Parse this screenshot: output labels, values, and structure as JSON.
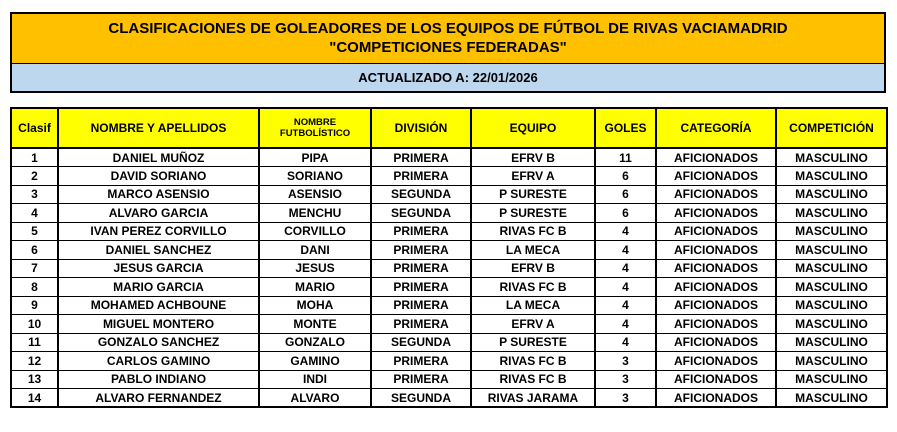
{
  "header": {
    "title_line1": "CLASIFICACIONES DE GOLEADORES DE LOS EQUIPOS DE FÚTBOL DE RIVAS VACIAMADRID",
    "title_line2": "\"COMPETICIONES FEDERADAS\"",
    "updated": "ACTUALIZADO A: 22/01/2026"
  },
  "colors": {
    "title_bg": "#FFC000",
    "updated_bg": "#BDD7EE",
    "table_header_bg": "#FFFF00",
    "border": "#000000",
    "text": "#000000"
  },
  "table": {
    "columns": [
      "Clasif",
      "NOMBRE Y APELLIDOS",
      "NOMBRE FUTBOLÍSTICO",
      "DIVISIÓN",
      "EQUIPO",
      "GOLES",
      "CATEGORÍA",
      "COMPETICIÓN"
    ],
    "column_keys": [
      "clasif",
      "nombre-apellidos",
      "nombre-futbolistico",
      "division",
      "equipo",
      "goles",
      "categoria",
      "competicion"
    ],
    "rows": [
      [
        "1",
        "DANIEL MUÑOZ",
        "PIPA",
        "PRIMERA",
        "EFRV B",
        "11",
        "AFICIONADOS",
        "MASCULINO"
      ],
      [
        "2",
        "DAVID SORIANO",
        "SORIANO",
        "PRIMERA",
        "EFRV A",
        "6",
        "AFICIONADOS",
        "MASCULINO"
      ],
      [
        "3",
        "MARCO ASENSIO",
        "ASENSIO",
        "SEGUNDA",
        "P SURESTE",
        "6",
        "AFICIONADOS",
        "MASCULINO"
      ],
      [
        "4",
        "ALVARO GARCIA",
        "MENCHU",
        "SEGUNDA",
        "P SURESTE",
        "6",
        "AFICIONADOS",
        "MASCULINO"
      ],
      [
        "5",
        "IVAN PEREZ CORVILLO",
        "CORVILLO",
        "PRIMERA",
        "RIVAS FC B",
        "4",
        "AFICIONADOS",
        "MASCULINO"
      ],
      [
        "6",
        "DANIEL SANCHEZ",
        "DANI",
        "PRIMERA",
        "LA MECA",
        "4",
        "AFICIONADOS",
        "MASCULINO"
      ],
      [
        "7",
        "JESUS GARCIA",
        "JESUS",
        "PRIMERA",
        "EFRV B",
        "4",
        "AFICIONADOS",
        "MASCULINO"
      ],
      [
        "8",
        "MARIO GARCIA",
        "MARIO",
        "PRIMERA",
        "RIVAS FC B",
        "4",
        "AFICIONADOS",
        "MASCULINO"
      ],
      [
        "9",
        "MOHAMED ACHBOUNE",
        "MOHA",
        "PRIMERA",
        "LA MECA",
        "4",
        "AFICIONADOS",
        "MASCULINO"
      ],
      [
        "10",
        "MIGUEL MONTERO",
        "MONTE",
        "PRIMERA",
        "EFRV A",
        "4",
        "AFICIONADOS",
        "MASCULINO"
      ],
      [
        "11",
        "GONZALO SANCHEZ",
        "GONZALO",
        "SEGUNDA",
        "P SURESTE",
        "4",
        "AFICIONADOS",
        "MASCULINO"
      ],
      [
        "12",
        "CARLOS GAMINO",
        "GAMINO",
        "PRIMERA",
        "RIVAS FC B",
        "3",
        "AFICIONADOS",
        "MASCULINO"
      ],
      [
        "13",
        "PABLO INDIANO",
        "INDI",
        "PRIMERA",
        "RIVAS FC B",
        "3",
        "AFICIONADOS",
        "MASCULINO"
      ],
      [
        "14",
        "ALVARO FERNANDEZ",
        "ALVARO",
        "SEGUNDA",
        "RIVAS JARAMA",
        "3",
        "AFICIONADOS",
        "MASCULINO"
      ]
    ]
  }
}
